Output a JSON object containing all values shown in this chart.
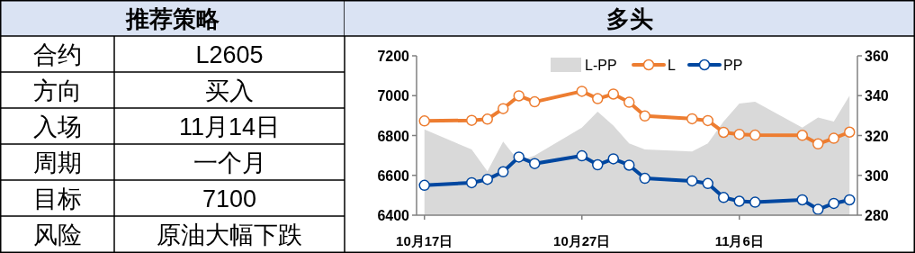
{
  "chart_data": [
    {
      "type": "other",
      "title": "推荐策略",
      "annotations": [
        "合约",
        "L2605",
        "方向",
        "买入",
        "入场",
        "11月14日",
        "周期",
        "一个月",
        "目标",
        "7100",
        "风险",
        "原油大幅下跌"
      ]
    },
    {
      "type": "line",
      "title": "多头",
      "x": [
        "--10-17",
        "--10-20",
        "--10-21",
        "--10-22",
        "--10-23",
        "--10-24",
        "--10-27",
        "--10-28",
        "--10-29",
        "--10-30",
        "--10-31",
        "--11-03",
        "--11-04",
        "--11-05",
        "--11-06",
        "--11-07",
        "--11-10",
        "--11-11",
        "--11-12",
        "--11-13"
      ],
      "xlim": [
        "--10-16T12:00",
        "--11-13T12:00"
      ],
      "xticks": [
        {
          "value": "--10-17",
          "label": "10月17日"
        },
        {
          "value": "--10-27",
          "label": "10月27日"
        },
        {
          "value": "--11-06",
          "label": "11月6日"
        }
      ],
      "ylim": [
        6400,
        7200
      ],
      "yticks": [
        6400,
        6600,
        6800,
        7000,
        7200
      ],
      "y2lim": [
        280,
        360
      ],
      "y2ticks": [
        280,
        300,
        320,
        340,
        360
      ],
      "marker": "circle",
      "legend": "top",
      "series": [
        {
          "name": "L-PP",
          "type": "area",
          "axis": "y2",
          "marker": "none",
          "color": "#d9d9d9",
          "values": [
            323,
            313,
            302,
            317,
            307,
            310,
            324,
            332,
            325,
            316,
            313,
            312,
            316,
            327,
            336,
            337,
            324,
            329,
            327,
            340
          ]
        },
        {
          "name": "L",
          "color": "#ed7d31",
          "values": [
            6873,
            6876,
            6882,
            6935,
            6999,
            6969,
            7022,
            6985,
            7008,
            6967,
            6898,
            6884,
            6875,
            6816,
            6806,
            6802,
            6801,
            6758,
            6786,
            6817
          ]
        },
        {
          "name": "PP",
          "color": "#0047a0",
          "values": [
            6550,
            6563,
            6580,
            6618,
            6692,
            6659,
            6698,
            6653,
            6683,
            6651,
            6585,
            6572,
            6559,
            6489,
            6470,
            6465,
            6477,
            6429,
            6459,
            6477
          ]
        }
      ]
    }
  ]
}
